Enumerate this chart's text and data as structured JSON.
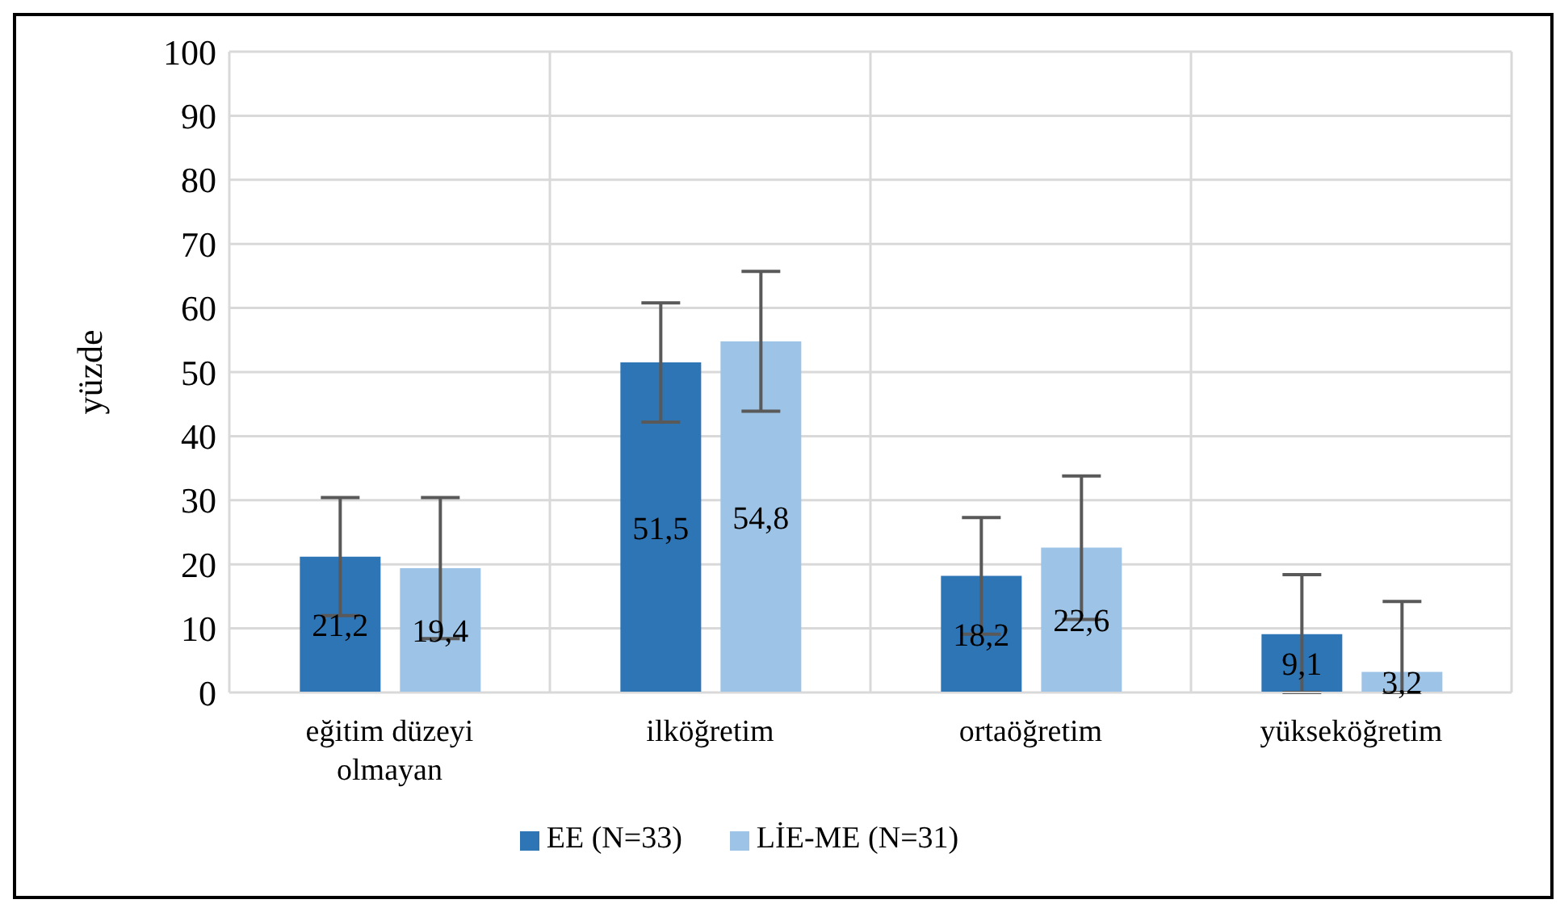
{
  "chart_data": {
    "type": "bar",
    "categories": [
      "eğitim düzeyi olmayan",
      "ilköğretim",
      "ortaöğretim",
      "yükseköğretim"
    ],
    "ylabel": "yüzde",
    "ylim": [
      0,
      100
    ],
    "yticks": [
      0,
      10,
      20,
      30,
      40,
      50,
      60,
      70,
      80,
      90,
      100
    ],
    "grid": true,
    "legend": "bottom",
    "series": [
      {
        "name": "EE (N=33)",
        "color": "#2e75b6",
        "values": [
          21.2,
          51.5,
          18.2,
          9.1
        ],
        "value_labels": [
          "21,2",
          "51,5",
          "18,2",
          "9,1"
        ],
        "errors": [
          9.2,
          9.3,
          9.1,
          [
            0,
            18.4
          ]
        ]
      },
      {
        "name": "LİE-ME (N=31)",
        "color": "#9dc3e6",
        "values": [
          19.4,
          54.8,
          22.6,
          3.2
        ],
        "value_labels": [
          "19,4",
          "54,8",
          "22,6",
          "3,2"
        ],
        "errors": [
          11,
          10.9,
          11.2,
          [
            0,
            14.2
          ]
        ]
      }
    ]
  }
}
